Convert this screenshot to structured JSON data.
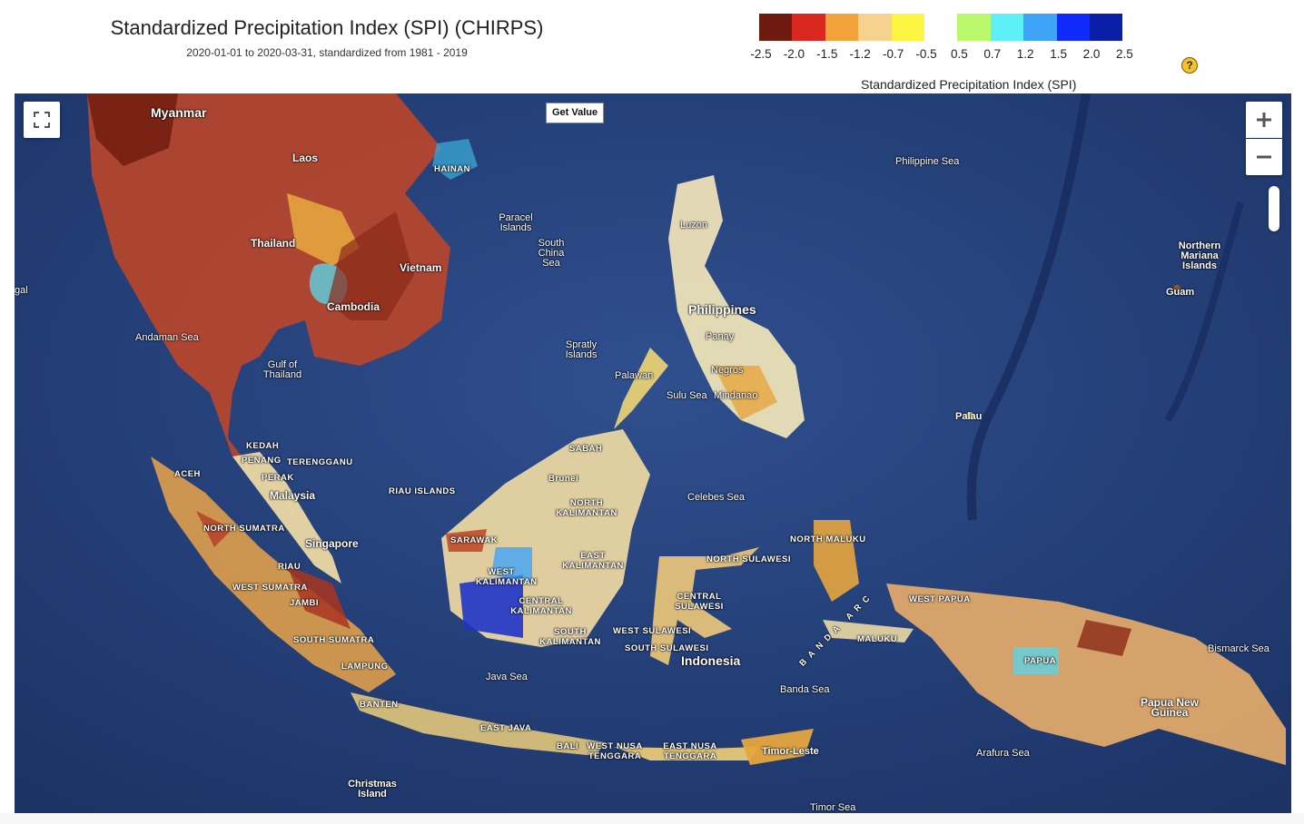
{
  "header": {
    "title": "Standardized Precipitation Index (SPI) (CHIRPS)",
    "subtitle": "2020-01-01 to 2020-03-31, standardized from 1981 - 2019"
  },
  "legend": {
    "colors": [
      "#6e1a0e",
      "#d8281f",
      "#f2a33a",
      "#f7d28e",
      "#fcf642",
      "#ffffff",
      "#b9f86a",
      "#5ef0f7",
      "#3ea4f7",
      "#0f2afb",
      "#0a1ea7"
    ],
    "ticks": [
      "-2.5",
      "-2.0",
      "-1.5",
      "-1.2",
      "-0.7",
      "-0.5",
      "0.5",
      "0.7",
      "1.2",
      "1.5",
      "2.0",
      "2.5"
    ],
    "title": "Standardized Precipitation Index (SPI)",
    "help_icon": "question-mark-icon",
    "help_glyph": "?"
  },
  "controls": {
    "get_value": "Get Value",
    "fullscreen_icon": "fullscreen-icon",
    "zoom_in_icon": "plus-icon",
    "zoom_out_icon": "minus-icon"
  },
  "map": {
    "labels_big": {
      "philippines": "Philippines",
      "malaysia": "Malaysia",
      "singapore": "Singapore",
      "indonesia": "Indonesia",
      "thailand": "Thailand",
      "vietnam": "Vietnam",
      "cambodia": "Cambodia",
      "laos": "Laos",
      "myanmar": "Myanmar",
      "png": "Papua New Guinea"
    },
    "labels_small": {
      "philippine_sea": "Philippine Sea",
      "paracel": "Paracel Islands",
      "scs": "South China Sea",
      "andaman": "Andaman Sea",
      "gulf_thailand": "Gulf of Thailand",
      "spratly": "Spratly Islands",
      "palawan": "Palawan",
      "luzon": "Luzon",
      "panay": "Panay",
      "negros": "Negros",
      "sulu_sea": "Sulu Sea",
      "mindanao": "Mindanao",
      "celebes": "Celebes Sea",
      "palau": "Palau",
      "guam": "Guam",
      "nmi": "Northern Mariana Islands",
      "bismarck": "Bismarck Sea",
      "banda": "Banda Sea",
      "java_sea": "Java Sea",
      "arafura": "Arafura Sea",
      "timor_sea": "Timor Sea",
      "christmas": "Christmas Island",
      "timor_leste": "Timor-Leste",
      "bengal": "gal"
    },
    "labels_caps": {
      "hainan": "HAINAN",
      "kedah": "KEDAH",
      "penang": "PENANG",
      "terengganu": "TERENGGANU",
      "perak": "PERAK",
      "riau_islands": "RIAU ISLANDS",
      "aceh": "ACEH",
      "north_sumatra": "NORTH SUMATRA",
      "riau": "RIAU",
      "west_sumatra": "WEST SUMATRA",
      "jambi": "JAMBI",
      "south_sumatra": "SOUTH SUMATRA",
      "lampung": "LAMPUNG",
      "banten": "BANTEN",
      "east_java": "EAST JAVA",
      "bali": "BALI",
      "wnt": "WEST NUSA TENGGARA",
      "ent": "EAST NUSA TENGGARA",
      "sabah": "SABAH",
      "brunei": "Brunei",
      "north_kal": "NORTH KALIMANTAN",
      "east_kal": "EAST KALIMANTAN",
      "west_kal": "WEST KALIMANTAN",
      "central_kal": "CENTRAL KALIMANTAN",
      "south_kal": "SOUTH KALIMANTAN",
      "sarawak": "SARAWAK",
      "north_maluku": "NORTH MALUKU",
      "north_sul": "NORTH SULAWESI",
      "central_sul": "CENTRAL SULAWESI",
      "west_sul": "WEST SULAWESI",
      "south_sul": "SOUTH SULAWESI",
      "maluku": "MALUKU",
      "west_papua": "WEST PAPUA",
      "papua": "PAPUA",
      "banda_arc": "BANDA ARC"
    }
  }
}
